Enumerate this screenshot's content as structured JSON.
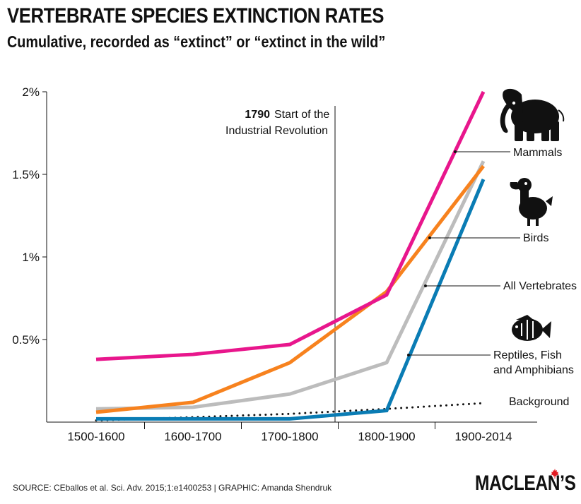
{
  "chart_data": {
    "type": "line",
    "title": "VERTEBRATE SPECIES EXTINCTION RATES",
    "subtitle": "Cumulative, recorded as “extinct” or “extinct in the wild”",
    "categories": [
      "1500-1600",
      "1600-1700",
      "1700-1800",
      "1800-1900",
      "1900-2014"
    ],
    "ylim": [
      0,
      2
    ],
    "yticks": [
      {
        "value": 0.5,
        "label": "0.5%"
      },
      {
        "value": 1,
        "label": "1%"
      },
      {
        "value": 1.5,
        "label": "1.5%"
      },
      {
        "value": 2,
        "label": "2%"
      }
    ],
    "series": [
      {
        "name": "Mammals",
        "color": "#e8168c",
        "style": "solid",
        "values": [
          0.38,
          0.41,
          0.47,
          0.77,
          2.0
        ]
      },
      {
        "name": "Birds",
        "color": "#f7821e",
        "style": "solid",
        "values": [
          0.06,
          0.12,
          0.36,
          0.79,
          1.55
        ]
      },
      {
        "name": "All Vertebrates",
        "color": "#bcbcbc",
        "style": "solid",
        "values": [
          0.08,
          0.09,
          0.17,
          0.36,
          1.58
        ]
      },
      {
        "name": "Reptiles, Fish and Amphibians",
        "color": "#0a7cb4",
        "style": "solid",
        "values": [
          0.02,
          0.02,
          0.02,
          0.07,
          1.47
        ]
      },
      {
        "name": "Background",
        "color": "#111111",
        "style": "dotted",
        "values": [
          0.01,
          0.03,
          0.05,
          0.08,
          0.115
        ]
      }
    ],
    "annotation": {
      "year": "1790",
      "text_line1": "Start of the",
      "text_line2": "Industrial Revolution"
    },
    "labels": {
      "mammals": "Mammals",
      "birds": "Birds",
      "all_vertebrates": "All Vertebrates",
      "rfa_line1": "Reptiles, Fish",
      "rfa_line2": "and Amphibians",
      "background": "Background"
    }
  },
  "footer": {
    "source": "SOURCE: CEballos et al. Sci. Adv. 2015;1:e1400253  |  GRAPHIC: Amanda Shendruk",
    "logo": "MACLEAN’S"
  },
  "icons": [
    "elephant-icon",
    "dodo-icon",
    "fish-icon",
    "maple-leaf-icon"
  ]
}
